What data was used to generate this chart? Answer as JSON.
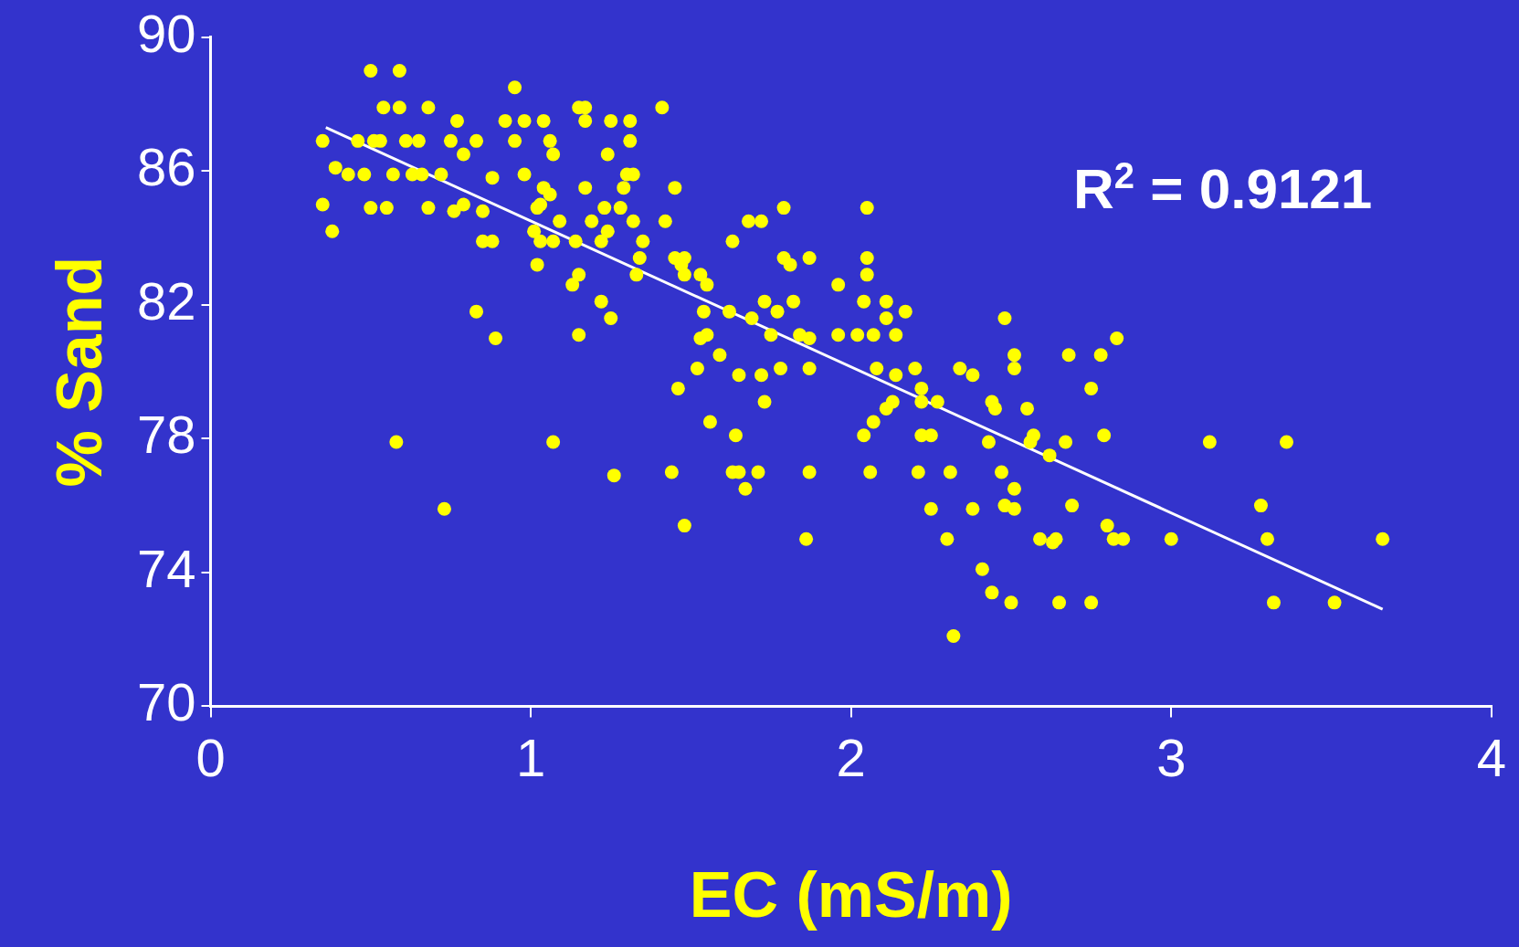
{
  "chart_data": {
    "type": "scatter",
    "xlabel": "EC (mS/m)",
    "ylabel": "% Sand",
    "xlim": [
      0,
      4
    ],
    "xticks": [
      0,
      1,
      2,
      3,
      4
    ],
    "ylim": [
      70,
      90
    ],
    "yticks": [
      70,
      74,
      78,
      82,
      86,
      90
    ],
    "grid": false,
    "legend": false,
    "marker": "circle",
    "annotations": [
      "R$^{2}$ = 0.9121"
    ],
    "series": [
      {
        "color": "#ffff00",
        "x": [
          0.35,
          0.35,
          0.38,
          0.39,
          0.43,
          0.46,
          0.48,
          0.5,
          0.5,
          0.51,
          0.53,
          0.54,
          0.55,
          0.57,
          0.58,
          0.59,
          0.59,
          0.61,
          0.63,
          0.65,
          0.66,
          0.68,
          0.68,
          0.72,
          0.73,
          0.75,
          0.76,
          0.77,
          0.79,
          0.79,
          0.83,
          0.83,
          0.85,
          0.85,
          0.88,
          0.88,
          0.89,
          0.92,
          0.95,
          0.95,
          0.98,
          0.98,
          1.01,
          1.02,
          1.02,
          1.03,
          1.04,
          1.04,
          1.03,
          1.06,
          1.06,
          1.07,
          1.07,
          1.07,
          1.09,
          1.13,
          1.14,
          1.15,
          1.15,
          1.15,
          1.17,
          1.17,
          1.17,
          1.19,
          1.22,
          1.22,
          1.23,
          1.24,
          1.24,
          1.25,
          1.25,
          1.26,
          1.28,
          1.29,
          1.3,
          1.31,
          1.31,
          1.32,
          1.32,
          1.33,
          1.34,
          1.35,
          1.41,
          1.42,
          1.44,
          1.45,
          1.45,
          1.46,
          1.47,
          1.48,
          1.48,
          1.48,
          1.52,
          1.53,
          1.53,
          1.54,
          1.55,
          1.55,
          1.56,
          1.59,
          1.63,
          1.62,
          1.63,
          1.64,
          1.65,
          1.65,
          1.67,
          1.68,
          1.69,
          1.71,
          1.72,
          1.72,
          1.73,
          1.73,
          1.75,
          1.77,
          1.78,
          1.79,
          1.79,
          1.81,
          1.82,
          1.84,
          1.86,
          1.87,
          1.87,
          1.87,
          1.87,
          1.96,
          1.96,
          2.02,
          2.04,
          2.04,
          2.05,
          2.05,
          2.05,
          2.06,
          2.07,
          2.07,
          2.08,
          2.11,
          2.11,
          2.11,
          2.13,
          2.14,
          2.14,
          2.17,
          2.2,
          2.21,
          2.22,
          2.22,
          2.22,
          2.25,
          2.25,
          2.27,
          2.3,
          2.31,
          2.32,
          2.34,
          2.38,
          2.38,
          2.41,
          2.43,
          2.44,
          2.44,
          2.45,
          2.47,
          2.48,
          2.48,
          2.5,
          2.51,
          2.51,
          2.51,
          2.51,
          2.55,
          2.56,
          2.57,
          2.59,
          2.62,
          2.63,
          2.64,
          2.65,
          2.67,
          2.68,
          2.69,
          2.75,
          2.75,
          2.78,
          2.79,
          2.8,
          2.82,
          2.83,
          2.85,
          3.0,
          3.12,
          3.28,
          3.3,
          3.32,
          3.36,
          3.51,
          3.66
        ],
        "values": [
          86.9,
          85.0,
          84.2,
          86.1,
          85.9,
          86.9,
          85.9,
          89.0,
          84.9,
          86.9,
          86.9,
          87.9,
          84.9,
          85.9,
          77.9,
          89.0,
          87.9,
          86.9,
          85.9,
          86.9,
          85.9,
          87.9,
          84.9,
          85.9,
          75.9,
          86.9,
          84.8,
          87.5,
          86.5,
          85.0,
          81.8,
          86.9,
          84.8,
          83.9,
          85.8,
          83.9,
          81.0,
          87.5,
          88.5,
          86.9,
          87.5,
          85.9,
          84.2,
          84.9,
          83.2,
          85.0,
          87.5,
          85.5,
          83.9,
          86.9,
          85.3,
          77.9,
          86.5,
          83.9,
          84.5,
          82.6,
          83.9,
          81.1,
          82.9,
          87.9,
          87.9,
          87.5,
          85.5,
          84.5,
          83.9,
          82.1,
          84.9,
          86.5,
          84.2,
          87.5,
          81.6,
          76.9,
          84.9,
          85.5,
          85.9,
          87.5,
          86.9,
          85.9,
          84.5,
          82.9,
          83.4,
          83.9,
          87.9,
          84.5,
          77.0,
          85.5,
          83.4,
          79.5,
          83.2,
          75.4,
          83.4,
          82.9,
          80.1,
          82.9,
          81.0,
          81.8,
          82.6,
          81.1,
          78.5,
          80.5,
          83.9,
          81.8,
          77.0,
          78.1,
          77.0,
          79.9,
          76.5,
          84.5,
          81.6,
          77.0,
          84.5,
          79.9,
          79.1,
          82.1,
          81.1,
          81.8,
          80.1,
          84.9,
          83.4,
          83.2,
          82.1,
          81.1,
          75.0,
          77.0,
          80.1,
          81.0,
          83.4,
          82.6,
          81.1,
          81.1,
          78.1,
          82.1,
          82.9,
          83.4,
          84.9,
          77.0,
          78.5,
          81.1,
          80.1,
          82.1,
          78.9,
          81.6,
          79.1,
          79.9,
          81.1,
          81.8,
          80.1,
          77.0,
          78.1,
          79.5,
          79.1,
          78.1,
          75.9,
          79.1,
          75.0,
          77.0,
          72.1,
          80.1,
          75.9,
          79.9,
          74.1,
          77.9,
          73.4,
          79.1,
          78.9,
          77.0,
          76.0,
          81.6,
          73.1,
          75.9,
          76.5,
          80.1,
          80.5,
          78.9,
          77.9,
          78.1,
          75.0,
          77.5,
          74.9,
          75.0,
          73.1,
          77.9,
          80.5,
          76.0,
          79.5,
          73.1,
          80.5,
          78.1,
          75.4,
          75.0,
          81.0,
          75.0,
          75.0,
          77.9,
          76.0,
          75.0,
          73.1,
          77.9,
          73.1,
          75.0
        ]
      },
      {
        "type": "line",
        "color": "#ffffff",
        "marker": "none",
        "x": [
          0.36,
          3.66
        ],
        "values": [
          87.3,
          72.9
        ]
      }
    ]
  }
}
